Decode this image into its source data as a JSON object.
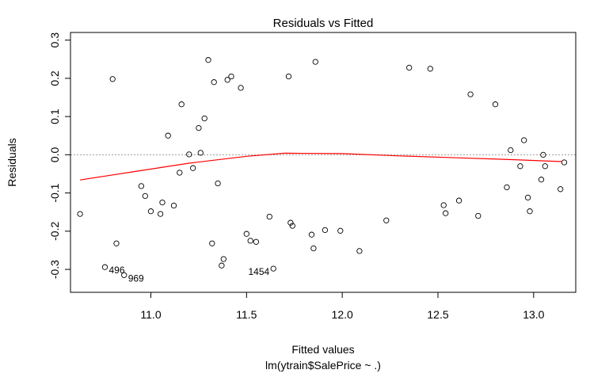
{
  "chart_data": {
    "type": "scatter",
    "title": "Residuals vs Fitted",
    "xlabel": "Fitted values",
    "sublabel": "lm(ytrain$SalePrice ~ .)",
    "ylabel": "Residuals",
    "xlim": [
      10.58,
      13.22
    ],
    "ylim": [
      -0.36,
      0.32
    ],
    "x_ticks": [
      {
        "value": 11.0,
        "label": "11.0"
      },
      {
        "value": 11.5,
        "label": "11.5"
      },
      {
        "value": 12.0,
        "label": "12.0"
      },
      {
        "value": 12.5,
        "label": "12.5"
      },
      {
        "value": 13.0,
        "label": "13.0"
      }
    ],
    "y_ticks": [
      {
        "value": -0.3,
        "label": "-0.3"
      },
      {
        "value": -0.2,
        "label": "-0.2"
      },
      {
        "value": -0.1,
        "label": "-0.1"
      },
      {
        "value": 0.0,
        "label": "0.0"
      },
      {
        "value": 0.1,
        "label": "0.1"
      },
      {
        "value": 0.2,
        "label": "0.2"
      },
      {
        "value": 0.3,
        "label": "0.3"
      }
    ],
    "reference_line_y": 0,
    "colors": {
      "points": "#000000",
      "smoother": "#ff0000",
      "reference": "#999999"
    },
    "labeled_points": [
      {
        "x": 10.76,
        "y": -0.294,
        "label": "496"
      },
      {
        "x": 10.86,
        "y": -0.315,
        "label": "969"
      },
      {
        "x": 11.64,
        "y": -0.298,
        "label": "1454"
      }
    ],
    "smoother": {
      "x": [
        10.63,
        10.9,
        11.2,
        11.5,
        11.7,
        12.0,
        12.3,
        12.6,
        12.9,
        13.15
      ],
      "y": [
        -0.066,
        -0.045,
        -0.022,
        -0.004,
        0.004,
        0.003,
        -0.003,
        -0.008,
        -0.013,
        -0.018
      ]
    },
    "series": [
      {
        "points": [
          [
            10.63,
            -0.155
          ],
          [
            10.8,
            0.198
          ],
          [
            10.82,
            -0.232
          ],
          [
            11.09,
            0.05
          ],
          [
            11.16,
            0.132
          ],
          [
            11.3,
            0.248
          ],
          [
            11.33,
            0.19
          ],
          [
            11.4,
            0.196
          ],
          [
            11.42,
            0.205
          ],
          [
            11.47,
            0.175
          ],
          [
            11.72,
            0.205
          ],
          [
            11.86,
            0.243
          ],
          [
            12.35,
            0.228
          ],
          [
            12.46,
            0.225
          ],
          [
            12.67,
            0.158
          ],
          [
            12.8,
            0.132
          ],
          [
            11.38,
            -0.273
          ],
          [
            11.37,
            -0.29
          ],
          [
            11.52,
            -0.225
          ],
          [
            11.5,
            -0.207
          ],
          [
            11.55,
            -0.228
          ],
          [
            11.32,
            -0.232
          ],
          [
            12.09,
            -0.252
          ],
          [
            11.85,
            -0.245
          ],
          [
            11.74,
            -0.186
          ],
          [
            11.62,
            -0.162
          ],
          [
            11.73,
            -0.178
          ],
          [
            11.84,
            -0.209
          ],
          [
            11.91,
            -0.197
          ],
          [
            11.99,
            -0.199
          ],
          [
            12.23,
            -0.172
          ],
          [
            10.97,
            -0.108
          ],
          [
            10.95,
            -0.082
          ],
          [
            11.0,
            -0.148
          ],
          [
            11.06,
            -0.125
          ],
          [
            11.05,
            -0.155
          ],
          [
            11.12,
            -0.133
          ],
          [
            11.15,
            -0.047
          ],
          [
            11.2,
            0.001
          ],
          [
            11.26,
            0.005
          ],
          [
            11.25,
            0.07
          ],
          [
            11.28,
            0.095
          ],
          [
            11.35,
            -0.075
          ],
          [
            11.22,
            -0.035
          ],
          [
            12.97,
            -0.112
          ],
          [
            12.98,
            -0.148
          ],
          [
            13.04,
            -0.065
          ],
          [
            13.14,
            -0.09
          ],
          [
            13.16,
            -0.02
          ],
          [
            13.06,
            -0.03
          ],
          [
            12.95,
            0.038
          ],
          [
            13.05,
            0.0
          ],
          [
            12.93,
            -0.03
          ],
          [
            12.86,
            -0.085
          ],
          [
            12.88,
            0.012
          ],
          [
            12.71,
            -0.16
          ],
          [
            12.61,
            -0.12
          ],
          [
            12.54,
            -0.153
          ],
          [
            12.53,
            -0.132
          ]
        ]
      }
    ]
  }
}
